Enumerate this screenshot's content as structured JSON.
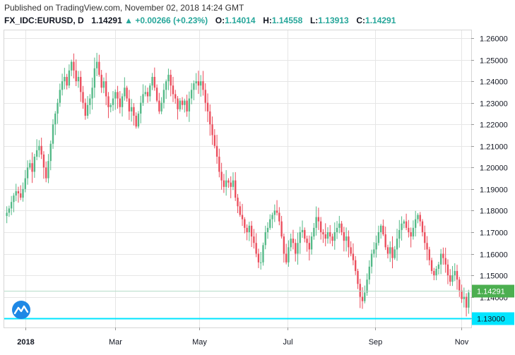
{
  "header": {
    "published": "Published on TradingView.com, November 02, 2018 14:24 GMT",
    "symbol": "FX_IDC:EURUSD, D",
    "last": "1.14291",
    "change": "+0.00266 (+0.23%)",
    "o_label": "O:",
    "o_value": "1.14014",
    "h_label": "H:",
    "h_value": "1.14558",
    "l_label": "L:",
    "l_value": "1.13913",
    "c_label": "C:",
    "c_value": "1.14291"
  },
  "colors": {
    "up": "#53b987",
    "down": "#eb4d5c",
    "level": "#00e5ff",
    "grid": "#e6e6e6",
    "price_badge": "#4caf50"
  },
  "price_label": "1.14291",
  "level_label": "1.13000",
  "logo_icon": "tradingview-logo-icon",
  "chart_data": {
    "type": "candlestick",
    "symbol": "EURUSD",
    "timeframe": "D",
    "y_range": [
      1.132,
      1.262
    ],
    "y_ticks": [
      "1.26000",
      "1.25000",
      "1.24000",
      "1.23000",
      "1.22000",
      "1.21000",
      "1.20000",
      "1.19000",
      "1.18000",
      "1.17000",
      "1.16000",
      "1.15000",
      "1.14000",
      "1.13000"
    ],
    "x_ticks": [
      {
        "label": "2018",
        "t": 0.045,
        "bold": true
      },
      {
        "label": "Mar",
        "t": 0.237
      },
      {
        "label": "May",
        "t": 0.418
      },
      {
        "label": "Jul",
        "t": 0.607
      },
      {
        "label": "Sep",
        "t": 0.795
      },
      {
        "label": "Nov",
        "t": 0.979
      }
    ],
    "horizontal_level": 1.13,
    "last_close": 1.14291,
    "closes": [
      1.179,
      1.181,
      1.184,
      1.187,
      1.189,
      1.188,
      1.186,
      1.19,
      1.195,
      1.2,
      1.202,
      1.198,
      1.205,
      1.208,
      1.21,
      1.206,
      1.2,
      1.195,
      1.203,
      1.211,
      1.22,
      1.225,
      1.23,
      1.236,
      1.24,
      1.242,
      1.238,
      1.245,
      1.249,
      1.245,
      1.24,
      1.242,
      1.235,
      1.23,
      1.224,
      1.229,
      1.232,
      1.237,
      1.246,
      1.249,
      1.243,
      1.237,
      1.24,
      1.233,
      1.228,
      1.229,
      1.232,
      1.235,
      1.232,
      1.228,
      1.233,
      1.237,
      1.232,
      1.226,
      1.228,
      1.224,
      1.219,
      1.225,
      1.23,
      1.234,
      1.235,
      1.233,
      1.238,
      1.242,
      1.237,
      1.231,
      1.226,
      1.23,
      1.236,
      1.24,
      1.243,
      1.238,
      1.234,
      1.232,
      1.227,
      1.231,
      1.229,
      1.231,
      1.226,
      1.232,
      1.236,
      1.239,
      1.24,
      1.238,
      1.24,
      1.236,
      1.23,
      1.226,
      1.22,
      1.215,
      1.21,
      1.205,
      1.198,
      1.194,
      1.191,
      1.194,
      1.193,
      1.191,
      1.194,
      1.186,
      1.182,
      1.178,
      1.176,
      1.172,
      1.17,
      1.173,
      1.168,
      1.165,
      1.16,
      1.156,
      1.156,
      1.164,
      1.17,
      1.172,
      1.176,
      1.178,
      1.18,
      1.179,
      1.175,
      1.168,
      1.16,
      1.156,
      1.163,
      1.167,
      1.165,
      1.16,
      1.165,
      1.17,
      1.171,
      1.167,
      1.165,
      1.162,
      1.168,
      1.172,
      1.177,
      1.175,
      1.17,
      1.169,
      1.167,
      1.17,
      1.168,
      1.166,
      1.17,
      1.172,
      1.174,
      1.17,
      1.166,
      1.168,
      1.163,
      1.16,
      1.157,
      1.152,
      1.146,
      1.14,
      1.138,
      1.142,
      1.148,
      1.154,
      1.16,
      1.162,
      1.165,
      1.17,
      1.173,
      1.169,
      1.163,
      1.16,
      1.163,
      1.158,
      1.162,
      1.167,
      1.171,
      1.174,
      1.175,
      1.172,
      1.17,
      1.168,
      1.172,
      1.176,
      1.178,
      1.175,
      1.17,
      1.165,
      1.162,
      1.157,
      1.152,
      1.15,
      1.153,
      1.155,
      1.16,
      1.158,
      1.155,
      1.15,
      1.147,
      1.15,
      1.152,
      1.148,
      1.143,
      1.139,
      1.14,
      1.135,
      1.142
    ]
  }
}
